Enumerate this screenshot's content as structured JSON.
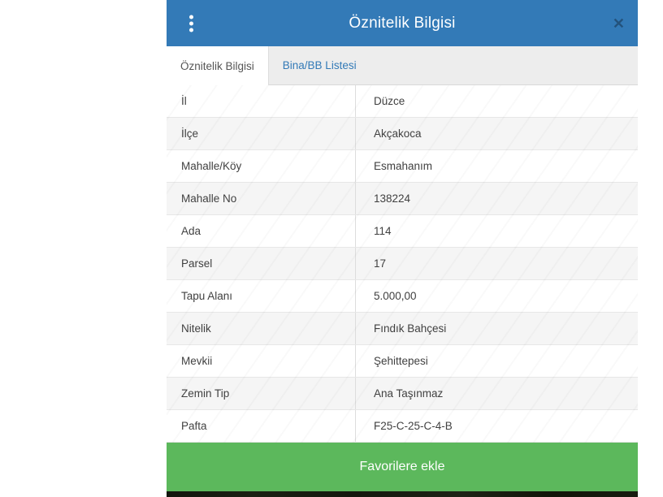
{
  "dialog": {
    "title": "Öznitelik Bilgisi",
    "menu_icon": "⋮",
    "close_icon": "✕"
  },
  "tabs": [
    {
      "label": "Öznitelik Bilgisi",
      "active": true
    },
    {
      "label": "Bina/BB Listesi",
      "active": false
    }
  ],
  "table": {
    "rows": [
      {
        "label": "İl",
        "value": "Düzce"
      },
      {
        "label": "İlçe",
        "value": "Akçakoca"
      },
      {
        "label": "Mahalle/Köy",
        "value": "Esmahanım"
      },
      {
        "label": "Mahalle No",
        "value": "138224"
      },
      {
        "label": "Ada",
        "value": "114"
      },
      {
        "label": "Parsel",
        "value": "17"
      },
      {
        "label": "Tapu Alanı",
        "value": "5.000,00"
      },
      {
        "label": "Nitelik",
        "value": "Fındık Bahçesi"
      },
      {
        "label": "Mevkii",
        "value": "Şehittepesi"
      },
      {
        "label": "Zemin Tip",
        "value": "Ana Taşınmaz"
      },
      {
        "label": "Pafta",
        "value": "F25-C-25-C-4-B"
      }
    ]
  },
  "footer": {
    "button_label": "Favorilere ekle"
  },
  "colors": {
    "header_blue": "#337ab7",
    "tab_link_blue": "#337ab7",
    "success_green": "#5cb85c",
    "close_navy": "#23527c",
    "row_alt_gray": "#f5f5f5"
  }
}
